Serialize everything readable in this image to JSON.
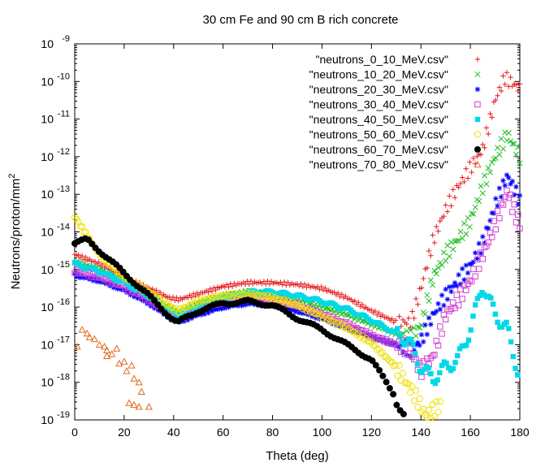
{
  "chart_data": {
    "type": "scatter",
    "title": "30 cm Fe and 90 cm B rich concrete",
    "xlabel": "Theta (deg)",
    "ylabel": "Neutrons/proton/mm",
    "ylabel_superscript": "2",
    "xlim": [
      0,
      180
    ],
    "ylim_log10": [
      -19,
      -9
    ],
    "yscale": "log",
    "grid": false,
    "legend_position": "top-right",
    "x_ticks": [
      {
        "value": 0,
        "label": "0"
      },
      {
        "value": 20,
        "label": "20"
      },
      {
        "value": 40,
        "label": "40"
      },
      {
        "value": 60,
        "label": "60"
      },
      {
        "value": 80,
        "label": "80"
      },
      {
        "value": 100,
        "label": "100"
      },
      {
        "value": 120,
        "label": "120"
      },
      {
        "value": 140,
        "label": "140"
      },
      {
        "value": 160,
        "label": "160"
      },
      {
        "value": 180,
        "label": "180"
      }
    ],
    "y_ticks": [
      {
        "exp": -19,
        "base": "10",
        "sup": "-19"
      },
      {
        "exp": -18,
        "base": "10",
        "sup": "-18"
      },
      {
        "exp": -17,
        "base": "10",
        "sup": "-17"
      },
      {
        "exp": -16,
        "base": "10",
        "sup": "-16"
      },
      {
        "exp": -15,
        "base": "10",
        "sup": "-15"
      },
      {
        "exp": -14,
        "base": "10",
        "sup": "-14"
      },
      {
        "exp": -13,
        "base": "10",
        "sup": "-13"
      },
      {
        "exp": -12,
        "base": "10",
        "sup": "-12"
      },
      {
        "exp": -11,
        "base": "10",
        "sup": "-11"
      },
      {
        "exp": -10,
        "base": "10",
        "sup": "-10"
      },
      {
        "exp": -9,
        "base": "10",
        "sup": "-9"
      }
    ],
    "series": [
      {
        "name": "\"neutrons_0_10_MeV.csv\"",
        "color": "#e41a1c",
        "marker": "plus",
        "curve": [
          [
            0,
            -14.6
          ],
          [
            10,
            -14.85
          ],
          [
            20,
            -15.2
          ],
          [
            30,
            -15.5
          ],
          [
            38,
            -15.75
          ],
          [
            42,
            -15.8
          ],
          [
            50,
            -15.65
          ],
          [
            60,
            -15.45
          ],
          [
            70,
            -15.35
          ],
          [
            80,
            -15.35
          ],
          [
            90,
            -15.4
          ],
          [
            100,
            -15.5
          ],
          [
            110,
            -15.75
          ],
          [
            120,
            -16.1
          ],
          [
            130,
            -16.4
          ],
          [
            136,
            -16.4
          ],
          [
            140,
            -15.5
          ],
          [
            145,
            -14.2
          ],
          [
            150,
            -13.4
          ],
          [
            155,
            -12.8
          ],
          [
            160,
            -12.3
          ],
          [
            165,
            -11.8
          ],
          [
            170,
            -10.5
          ],
          [
            174,
            -9.9
          ],
          [
            178,
            -10.1
          ],
          [
            180,
            -10.2
          ]
        ]
      },
      {
        "name": "\"neutrons_10_20_MeV.csv\"",
        "color": "#1ebd1e",
        "marker": "x",
        "curve": [
          [
            0,
            -14.8
          ],
          [
            10,
            -15.0
          ],
          [
            20,
            -15.3
          ],
          [
            30,
            -15.7
          ],
          [
            40,
            -16.1
          ],
          [
            42,
            -16.15
          ],
          [
            50,
            -15.9
          ],
          [
            60,
            -15.7
          ],
          [
            70,
            -15.6
          ],
          [
            80,
            -15.65
          ],
          [
            90,
            -15.8
          ],
          [
            100,
            -16.0
          ],
          [
            110,
            -16.2
          ],
          [
            120,
            -16.45
          ],
          [
            130,
            -16.7
          ],
          [
            136,
            -16.8
          ],
          [
            140,
            -16.5
          ],
          [
            145,
            -15.2
          ],
          [
            150,
            -14.6
          ],
          [
            155,
            -14.2
          ],
          [
            160,
            -13.7
          ],
          [
            165,
            -12.8
          ],
          [
            170,
            -12.0
          ],
          [
            175,
            -11.4
          ],
          [
            180,
            -12.0
          ]
        ]
      },
      {
        "name": "\"neutrons_20_30_MeV.csv\"",
        "color": "#0000ff",
        "marker": "star",
        "curve": [
          [
            0,
            -15.15
          ],
          [
            10,
            -15.3
          ],
          [
            20,
            -15.55
          ],
          [
            30,
            -15.9
          ],
          [
            40,
            -16.35
          ],
          [
            42,
            -16.4
          ],
          [
            50,
            -16.2
          ],
          [
            60,
            -16.0
          ],
          [
            70,
            -15.9
          ],
          [
            80,
            -15.95
          ],
          [
            90,
            -16.1
          ],
          [
            100,
            -16.3
          ],
          [
            110,
            -16.55
          ],
          [
            120,
            -16.8
          ],
          [
            130,
            -17.0
          ],
          [
            136,
            -17.15
          ],
          [
            140,
            -16.9
          ],
          [
            145,
            -16.2
          ],
          [
            150,
            -15.7
          ],
          [
            155,
            -15.3
          ],
          [
            160,
            -14.9
          ],
          [
            165,
            -14.3
          ],
          [
            170,
            -13.3
          ],
          [
            175,
            -12.5
          ],
          [
            178,
            -12.9
          ],
          [
            180,
            -13.2
          ]
        ]
      },
      {
        "name": "\"neutrons_30_40_MeV.csv\"",
        "color": "#d040d0",
        "marker": "square-open",
        "curve": [
          [
            0,
            -15.05
          ],
          [
            10,
            -15.2
          ],
          [
            20,
            -15.45
          ],
          [
            30,
            -15.8
          ],
          [
            40,
            -16.25
          ],
          [
            42,
            -16.3
          ],
          [
            50,
            -16.05
          ],
          [
            60,
            -15.85
          ],
          [
            70,
            -15.75
          ],
          [
            80,
            -15.8
          ],
          [
            90,
            -15.95
          ],
          [
            100,
            -16.2
          ],
          [
            110,
            -16.45
          ],
          [
            120,
            -16.75
          ],
          [
            130,
            -17.0
          ],
          [
            135,
            -17.1
          ],
          [
            140,
            -17.7
          ],
          [
            145,
            -17.3
          ],
          [
            150,
            -16.2
          ],
          [
            155,
            -15.8
          ],
          [
            160,
            -15.3
          ],
          [
            165,
            -14.6
          ],
          [
            170,
            -13.8
          ],
          [
            175,
            -12.9
          ],
          [
            178,
            -13.5
          ],
          [
            180,
            -13.8
          ]
        ]
      },
      {
        "name": "\"neutrons_40_50_MeV.csv\"",
        "color": "#00d8e8",
        "marker": "square-filled",
        "curve": [
          [
            0,
            -14.85
          ],
          [
            10,
            -15.05
          ],
          [
            20,
            -15.35
          ],
          [
            30,
            -15.7
          ],
          [
            40,
            -16.15
          ],
          [
            42,
            -16.2
          ],
          [
            50,
            -15.95
          ],
          [
            60,
            -15.75
          ],
          [
            70,
            -15.6
          ],
          [
            80,
            -15.6
          ],
          [
            90,
            -15.7
          ],
          [
            100,
            -15.85
          ],
          [
            110,
            -16.05
          ],
          [
            120,
            -16.35
          ],
          [
            130,
            -16.7
          ],
          [
            135,
            -16.9
          ],
          [
            140,
            -17.6
          ],
          [
            145,
            -17.9
          ],
          [
            150,
            -17.6
          ],
          [
            155,
            -17.4
          ],
          [
            160,
            -16.6
          ],
          [
            165,
            -15.4
          ],
          [
            170,
            -16.2
          ],
          [
            175,
            -16.6
          ],
          [
            178,
            -17.4
          ],
          [
            180,
            -17.9
          ]
        ]
      },
      {
        "name": "\"neutrons_50_60_MeV.csv\"",
        "color": "#f0e000",
        "marker": "circle-open",
        "curve": [
          [
            0,
            -13.6
          ],
          [
            5,
            -14.1
          ],
          [
            10,
            -14.6
          ],
          [
            20,
            -15.2
          ],
          [
            30,
            -15.6
          ],
          [
            40,
            -16.05
          ],
          [
            42,
            -16.1
          ],
          [
            50,
            -15.85
          ],
          [
            60,
            -15.7
          ],
          [
            70,
            -15.65
          ],
          [
            80,
            -15.75
          ],
          [
            90,
            -15.95
          ],
          [
            100,
            -16.25
          ],
          [
            110,
            -16.55
          ],
          [
            120,
            -16.95
          ],
          [
            130,
            -17.6
          ],
          [
            138,
            -18.4
          ],
          [
            142,
            -18.9
          ],
          [
            146,
            -18.7
          ],
          [
            148,
            -18.6
          ]
        ]
      },
      {
        "name": "\"neutrons_60_70_MeV.csv\"",
        "color": "#000000",
        "marker": "circle-filled",
        "curve": [
          [
            0,
            -14.3
          ],
          [
            5,
            -14.2
          ],
          [
            10,
            -14.5
          ],
          [
            20,
            -15.1
          ],
          [
            30,
            -15.7
          ],
          [
            40,
            -16.35
          ],
          [
            42,
            -16.4
          ],
          [
            50,
            -16.1
          ],
          [
            60,
            -15.9
          ],
          [
            70,
            -15.85
          ],
          [
            80,
            -15.95
          ],
          [
            90,
            -16.3
          ],
          [
            100,
            -16.6
          ],
          [
            110,
            -17.0
          ],
          [
            120,
            -17.4
          ],
          [
            125,
            -17.9
          ],
          [
            130,
            -18.4
          ],
          [
            134,
            -19.0
          ]
        ]
      },
      {
        "name": "\"neutrons_70_80_MeV.csv\"",
        "color": "#e06a1b",
        "marker": "triangle-open",
        "points": [
          [
            1,
            -17.05
          ],
          [
            3,
            -16.6
          ],
          [
            5,
            -16.7
          ],
          [
            6,
            -16.8
          ],
          [
            8,
            -16.85
          ],
          [
            10,
            -17.0
          ],
          [
            12,
            -17.05
          ],
          [
            13,
            -17.15
          ],
          [
            15,
            -17.25
          ],
          [
            17,
            -17.1
          ],
          [
            18,
            -17.5
          ],
          [
            20,
            -17.45
          ],
          [
            21,
            -17.7
          ],
          [
            23,
            -17.55
          ],
          [
            24,
            -17.9
          ],
          [
            26,
            -18.0
          ],
          [
            27,
            -18.25
          ],
          [
            13,
            -17.3
          ],
          [
            22,
            -18.55
          ],
          [
            24,
            -18.6
          ],
          [
            26,
            -18.65
          ],
          [
            30,
            -18.65
          ]
        ]
      }
    ]
  }
}
